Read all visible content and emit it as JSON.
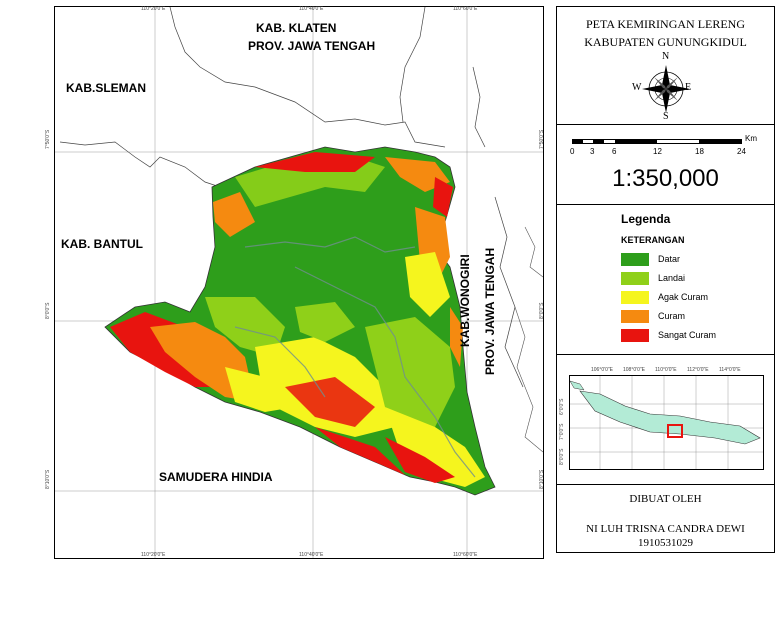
{
  "map": {
    "labels": {
      "klaten_1": "KAB. KLATEN",
      "klaten_2": "PROV. JAWA TENGAH",
      "sleman": "KAB.SLEMAN",
      "bantul": "KAB. BANTUL",
      "wonogiri_1": "KAB.WONOGIRI",
      "wonogiri_2": "PROV. JAWA TENGAH",
      "samudera": "SAMUDERA HINDIA"
    },
    "ticks_top": [
      "110°20'0\"E",
      "110°40'0\"E",
      "110°60'0\"E"
    ],
    "ticks_bottom": [
      "110°20'0\"E",
      "110°40'0\"E",
      "110°60'0\"E"
    ],
    "ticks_left": [
      "7°50'0\"S",
      "8°0'0\"S",
      "8°10'0\"S"
    ],
    "ticks_right": [
      "7°50'0\"S",
      "8°0'0\"S",
      "8°10'0\"S"
    ]
  },
  "title": {
    "line1": "PETA KEMIRINGAN LERENG",
    "line2": "KABUPATEN GUNUNGKIDUL"
  },
  "compass": {
    "n": "N",
    "s": "S",
    "e": "E",
    "w": "W"
  },
  "scale": {
    "unit": "Km",
    "ticks": [
      "0",
      "3",
      "6",
      "12",
      "18",
      "24"
    ],
    "ratio": "1:350,000"
  },
  "legend": {
    "title": "Legenda",
    "subtitle": "KETERANGAN",
    "items": [
      {
        "label": "Datar",
        "color": "#2e9e1b"
      },
      {
        "label": "Landai",
        "color": "#8fd019"
      },
      {
        "label": "Agak Curam",
        "color": "#f5f51e"
      },
      {
        "label": "Curam",
        "color": "#f58a10"
      },
      {
        "label": "Sangat Curam",
        "color": "#e8140f"
      }
    ]
  },
  "inset": {
    "ticks_top": [
      "106°0'0\"E",
      "108°0'0\"E",
      "110°0'0\"E",
      "112°0'0\"E",
      "114°0'0\"E"
    ],
    "ticks_side": [
      "6°0'0\"S",
      "7°0'0\"S",
      "8°0'0\"S"
    ]
  },
  "credit": {
    "made_by": "DIBUAT OLEH",
    "name": "NI LUH TRISNA CANDRA DEWI",
    "nim": "1910531029"
  }
}
